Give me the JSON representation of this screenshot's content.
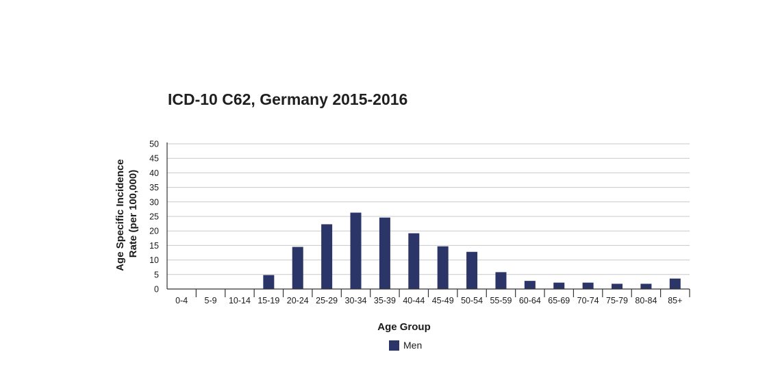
{
  "chart_data": {
    "type": "bar",
    "title": "ICD-10 C62, Germany 2015-2016",
    "xlabel": "Age Group",
    "ylabel_line1": "Age Specific Incidence",
    "ylabel_line2": "Rate (per 100,000)",
    "ylim": [
      0,
      50
    ],
    "yticks": [
      0,
      5,
      10,
      15,
      20,
      25,
      30,
      35,
      40,
      45,
      50
    ],
    "grid": true,
    "legend_position": "bottom-center",
    "categories": [
      "0-4",
      "5-9",
      "10-14",
      "15-19",
      "20-24",
      "25-29",
      "30-34",
      "35-39",
      "40-44",
      "45-49",
      "50-54",
      "55-59",
      "60-64",
      "65-69",
      "70-74",
      "75-79",
      "80-84",
      "85+"
    ],
    "series": [
      {
        "name": "Men",
        "color": "#2b3567",
        "values": [
          0,
          0,
          0,
          4.8,
          14.5,
          22.3,
          26.3,
          24.6,
          19.2,
          14.7,
          12.8,
          5.8,
          2.8,
          2.2,
          2.2,
          1.8,
          1.8,
          3.6
        ]
      }
    ]
  }
}
